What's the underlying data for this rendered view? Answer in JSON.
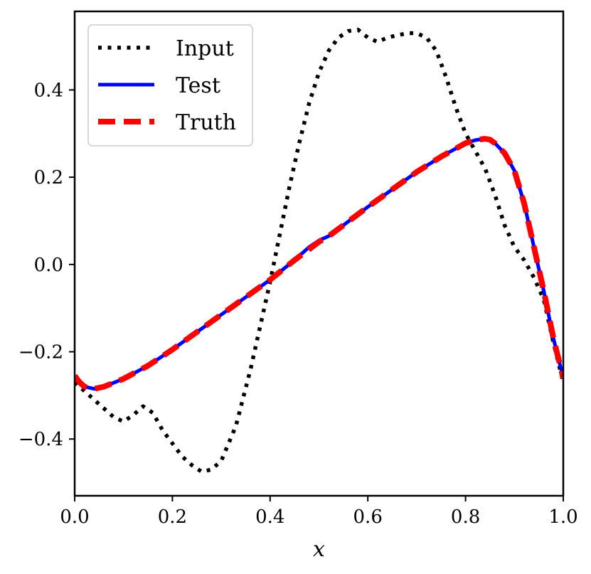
{
  "chart_data": {
    "type": "line",
    "xlabel": "x",
    "ylabel": "",
    "xlim": [
      0.0,
      1.0
    ],
    "ylim": [
      -0.53,
      0.58
    ],
    "xticks": [
      0.0,
      0.2,
      0.4,
      0.6,
      0.8,
      1.0
    ],
    "xtick_labels": [
      "0.0",
      "0.2",
      "0.4",
      "0.6",
      "0.8",
      "1.0"
    ],
    "yticks": [
      -0.4,
      -0.2,
      0.0,
      0.2,
      0.4
    ],
    "ytick_labels": [
      "−0.4",
      "−0.2",
      "0.0",
      "0.2",
      "0.4"
    ],
    "grid": false,
    "legend": "top-left",
    "series": [
      {
        "name": "Input",
        "color": "#000000",
        "style": "dotted",
        "x": [
          0.0,
          0.03,
          0.06,
          0.08,
          0.1,
          0.12,
          0.14,
          0.16,
          0.18,
          0.2,
          0.22,
          0.24,
          0.26,
          0.28,
          0.3,
          0.33,
          0.36,
          0.38,
          0.4,
          0.42,
          0.44,
          0.46,
          0.48,
          0.5,
          0.52,
          0.54,
          0.56,
          0.58,
          0.6,
          0.62,
          0.64,
          0.66,
          0.68,
          0.7,
          0.72,
          0.74,
          0.76,
          0.78,
          0.8,
          0.82,
          0.84,
          0.86,
          0.88,
          0.9,
          0.92,
          0.94,
          0.96,
          0.98,
          1.0
        ],
        "y": [
          -0.27,
          -0.3,
          -0.33,
          -0.35,
          -0.36,
          -0.345,
          -0.325,
          -0.34,
          -0.38,
          -0.41,
          -0.44,
          -0.46,
          -0.475,
          -0.47,
          -0.45,
          -0.37,
          -0.24,
          -0.14,
          -0.04,
          0.07,
          0.18,
          0.28,
          0.37,
          0.44,
          0.49,
          0.52,
          0.535,
          0.538,
          0.52,
          0.51,
          0.52,
          0.525,
          0.53,
          0.53,
          0.52,
          0.49,
          0.43,
          0.36,
          0.3,
          0.26,
          0.22,
          0.16,
          0.09,
          0.04,
          0.01,
          -0.03,
          -0.08,
          -0.18,
          -0.27
        ]
      },
      {
        "name": "Test",
        "color": "#0000ff",
        "style": "solid",
        "x": [
          0.0,
          0.01,
          0.02,
          0.04,
          0.06,
          0.1,
          0.15,
          0.2,
          0.25,
          0.3,
          0.35,
          0.4,
          0.45,
          0.48,
          0.5,
          0.52,
          0.55,
          0.6,
          0.65,
          0.7,
          0.75,
          0.8,
          0.82,
          0.84,
          0.85,
          0.86,
          0.88,
          0.9,
          0.92,
          0.94,
          0.96,
          0.98,
          1.0
        ],
        "y": [
          -0.255,
          -0.27,
          -0.28,
          -0.285,
          -0.28,
          -0.262,
          -0.232,
          -0.195,
          -0.155,
          -0.115,
          -0.075,
          -0.035,
          0.01,
          0.04,
          0.055,
          0.065,
          0.09,
          0.132,
          0.172,
          0.212,
          0.247,
          0.278,
          0.285,
          0.288,
          0.286,
          0.278,
          0.255,
          0.215,
          0.14,
          0.04,
          -0.06,
          -0.17,
          -0.26
        ]
      },
      {
        "name": "Truth",
        "color": "#ff0000",
        "style": "dashed",
        "x": [
          0.0,
          0.01,
          0.02,
          0.04,
          0.06,
          0.1,
          0.15,
          0.2,
          0.25,
          0.3,
          0.35,
          0.4,
          0.45,
          0.48,
          0.5,
          0.52,
          0.55,
          0.6,
          0.65,
          0.7,
          0.75,
          0.8,
          0.82,
          0.84,
          0.85,
          0.86,
          0.88,
          0.9,
          0.92,
          0.94,
          0.96,
          0.98,
          1.0
        ],
        "y": [
          -0.255,
          -0.27,
          -0.28,
          -0.285,
          -0.28,
          -0.262,
          -0.232,
          -0.195,
          -0.155,
          -0.115,
          -0.075,
          -0.035,
          0.01,
          0.035,
          0.052,
          0.065,
          0.09,
          0.132,
          0.172,
          0.212,
          0.247,
          0.278,
          0.285,
          0.288,
          0.286,
          0.278,
          0.255,
          0.215,
          0.14,
          0.04,
          -0.06,
          -0.17,
          -0.26
        ]
      }
    ]
  }
}
